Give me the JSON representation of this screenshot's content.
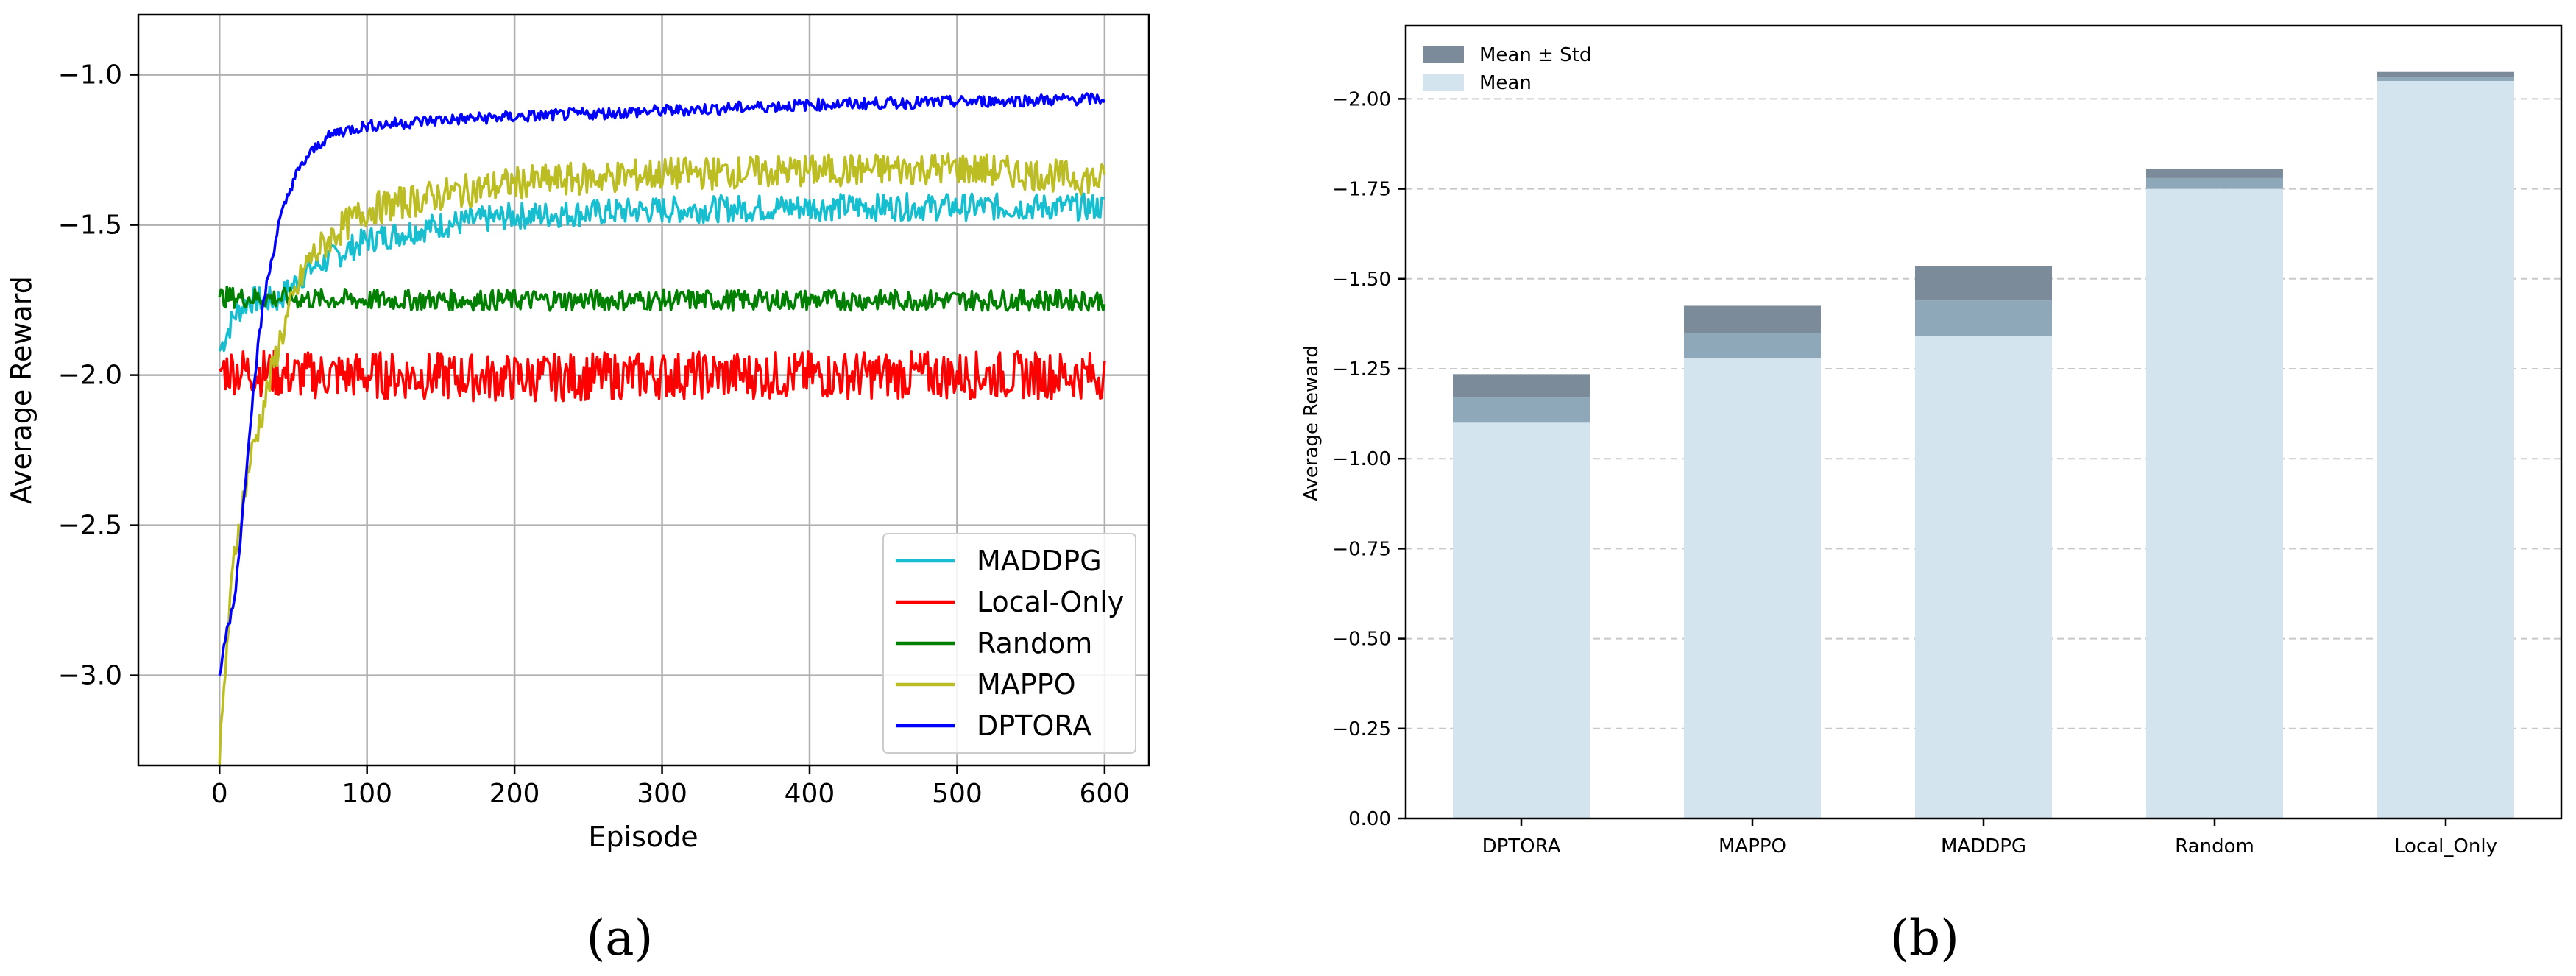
{
  "chart_data": [
    {
      "panel_label": "(a)",
      "type": "line",
      "xlabel": "Episode",
      "ylabel": "Average Reward",
      "xlim": [
        -55,
        630
      ],
      "ylim": [
        -3.3,
        -0.8
      ],
      "xticks": [
        0,
        100,
        200,
        300,
        400,
        500,
        600
      ],
      "xtick_labels": [
        "0",
        "100",
        "200",
        "300",
        "400",
        "500",
        "600"
      ],
      "yticks": [
        -3.0,
        -2.5,
        -2.0,
        -1.5,
        -1.0
      ],
      "ytick_labels": [
        "−3.0",
        "−2.5",
        "−2.0",
        "−1.5",
        "−1.0"
      ],
      "grid": true,
      "legend_position": "lower-right",
      "series": [
        {
          "name": "MADDPG",
          "color": "#17becf",
          "x": [
            0,
            10,
            20,
            40,
            60,
            80,
            100,
            150,
            200,
            300,
            400,
            500,
            600
          ],
          "y": [
            -1.92,
            -1.8,
            -1.75,
            -1.75,
            -1.65,
            -1.6,
            -1.55,
            -1.5,
            -1.47,
            -1.45,
            -1.44,
            -1.44,
            -1.44
          ]
        },
        {
          "name": "Local-Only",
          "color": "#ff0000",
          "x": [
            0,
            50,
            100,
            200,
            300,
            400,
            500,
            600
          ],
          "y": [
            -1.98,
            -2.0,
            -2.0,
            -2.01,
            -2.0,
            -2.0,
            -2.0,
            -2.0
          ]
        },
        {
          "name": "Random",
          "color": "#008000",
          "x": [
            0,
            100,
            200,
            300,
            400,
            500,
            600
          ],
          "y": [
            -1.74,
            -1.75,
            -1.75,
            -1.75,
            -1.75,
            -1.75,
            -1.75
          ]
        },
        {
          "name": "MAPPO",
          "color": "#bcbd22",
          "x": [
            0,
            5,
            10,
            20,
            30,
            40,
            50,
            60,
            80,
            100,
            150,
            200,
            300,
            400,
            500,
            600
          ],
          "y": [
            -3.3,
            -2.9,
            -2.6,
            -2.3,
            -2.1,
            -1.9,
            -1.75,
            -1.62,
            -1.52,
            -1.45,
            -1.4,
            -1.36,
            -1.33,
            -1.32,
            -1.31,
            -1.35
          ]
        },
        {
          "name": "DPTORA",
          "color": "#0000ff",
          "x": [
            0,
            5,
            10,
            15,
            20,
            25,
            30,
            40,
            50,
            60,
            70,
            80,
            100,
            150,
            200,
            300,
            400,
            500,
            600
          ],
          "y": [
            -3.0,
            -2.85,
            -2.75,
            -2.5,
            -2.2,
            -1.95,
            -1.75,
            -1.5,
            -1.35,
            -1.27,
            -1.22,
            -1.19,
            -1.17,
            -1.15,
            -1.14,
            -1.12,
            -1.1,
            -1.09,
            -1.08
          ]
        }
      ]
    },
    {
      "panel_label": "(b)",
      "type": "bar",
      "ylabel": "Average Reward",
      "categories": [
        "DPTORA",
        "MAPPO",
        "MADDPG",
        "Random",
        "Local_Only"
      ],
      "ylim": [
        0,
        -2.2
      ],
      "yticks": [
        0,
        -0.25,
        -0.5,
        -0.75,
        -1.0,
        -1.25,
        -1.5,
        -1.75,
        -2.0
      ],
      "ytick_labels": [
        "0.00",
        "−0.25",
        "−0.50",
        "−0.75",
        "−1.00",
        "−1.25",
        "−1.50",
        "−1.75",
        "−2.00"
      ],
      "grid": "y-dashed",
      "legend_position": "top-left",
      "legend": [
        "Mean ± Std",
        "Mean"
      ],
      "colors": {
        "mean": "#d3e4ef",
        "std_inner": "#8ea7b9",
        "std_outer": "#7c8b99"
      },
      "mean": [
        -1.1,
        -1.28,
        -1.34,
        -1.75,
        -2.05
      ],
      "std_inner_top": [
        -1.17,
        -1.35,
        -1.44,
        -1.78,
        -2.06
      ],
      "std_outer_top": [
        -1.235,
        -1.425,
        -1.535,
        -1.805,
        -2.075
      ]
    }
  ]
}
